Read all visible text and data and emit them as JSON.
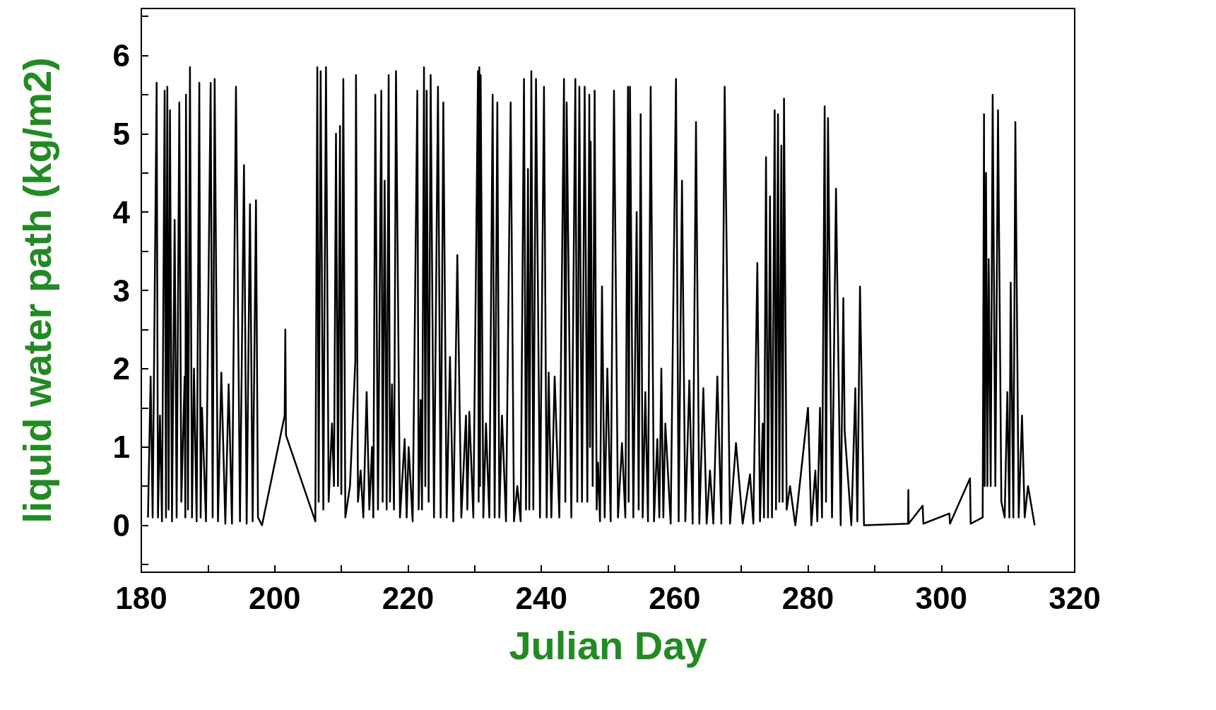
{
  "chart_data": {
    "type": "line",
    "xlabel": "Julian Day",
    "ylabel": "liquid water path (kg/m2)",
    "xlim": [
      180,
      320
    ],
    "ylim": [
      -0.6,
      6.6
    ],
    "xticks": [
      180,
      {
        "value": 190,
        "label": null
      },
      200,
      {
        "value": 210,
        "label": null
      },
      220,
      {
        "value": 230,
        "label": null
      },
      240,
      {
        "value": 250,
        "label": null
      },
      260,
      {
        "value": 270,
        "label": null
      },
      280,
      {
        "value": 290,
        "label": null
      },
      300,
      {
        "value": 310,
        "label": null
      },
      320
    ],
    "yticks": [
      {
        "value": -0.5,
        "label": null
      },
      0,
      {
        "value": 0.5,
        "label": null
      },
      1,
      {
        "value": 1.5,
        "label": null
      },
      2,
      {
        "value": 2.5,
        "label": null
      },
      3,
      {
        "value": 3.5,
        "label": null
      },
      4,
      {
        "value": 4.5,
        "label": null
      },
      5,
      {
        "value": 5.5,
        "label": null
      },
      6,
      {
        "value": 6.5,
        "label": null
      }
    ],
    "series": [
      {
        "color": "#000000",
        "x": [
          181.0,
          181.4,
          181.7,
          182.3,
          182.5,
          182.8,
          183.1,
          183.5,
          183.7,
          183.9,
          184.1,
          184.3,
          184.6,
          185.0,
          185.3,
          185.7,
          186.0,
          186.5,
          186.6,
          186.7,
          187.0,
          187.3,
          187.6,
          187.9,
          188.3,
          188.7,
          188.9,
          189.1,
          189.7,
          190.4,
          190.7,
          191.0,
          191.5,
          192.0,
          192.6,
          193.1,
          193.6,
          194.2,
          194.8,
          195.4,
          195.8,
          196.3,
          196.7,
          197.2,
          197.5,
          198.1,
          201.5,
          201.6,
          201.7,
          206.1,
          206.4,
          206.6,
          206.9,
          207.3,
          207.7,
          208.1,
          208.6,
          208.9,
          209.2,
          209.5,
          209.8,
          210.0,
          210.3,
          210.6,
          211.3,
          212.1,
          212.2,
          212.5,
          212.9,
          213.3,
          213.8,
          214.2,
          214.6,
          214.8,
          215.1,
          215.5,
          216.0,
          216.2,
          216.5,
          216.8,
          217.1,
          217.3,
          217.6,
          217.9,
          218.2,
          218.8,
          219.5,
          219.8,
          220.1,
          220.7,
          221.4,
          221.6,
          221.9,
          222.1,
          222.4,
          222.6,
          222.8,
          223.1,
          223.4,
          223.9,
          224.5,
          224.9,
          225.3,
          225.8,
          226.3,
          226.8,
          227.4,
          228.0,
          228.7,
          228.9,
          229.2,
          229.8,
          230.5,
          230.6,
          230.7,
          230.8,
          230.9,
          231.3,
          231.7,
          232.2,
          232.7,
          233.0,
          233.4,
          233.7,
          234.1,
          234.7,
          235.4,
          235.9,
          236.4,
          236.9,
          237.4,
          237.7,
          238.0,
          238.2,
          238.5,
          238.8,
          239.2,
          239.8,
          240.4,
          240.8,
          241.1,
          241.5,
          242.0,
          242.7,
          243.4,
          243.6,
          243.8,
          244.5,
          245.1,
          245.4,
          245.7,
          246.1,
          246.5,
          246.9,
          247.2,
          247.3,
          247.4,
          247.7,
          248.0,
          248.3,
          248.5,
          248.8,
          249.1,
          249.5,
          249.9,
          250.4,
          250.9,
          251.5,
          252.1,
          252.6,
          253.0,
          253.1,
          253.3,
          253.8,
          254.3,
          254.6,
          254.9,
          255.2,
          255.6,
          256.0,
          256.4,
          256.9,
          257.4,
          257.7,
          258.0,
          258.3,
          258.6,
          259.4,
          260.2,
          260.6,
          261.1,
          261.6,
          262.2,
          262.7,
          263.2,
          263.7,
          264.3,
          264.8,
          265.3,
          265.8,
          266.4,
          267.0,
          267.5,
          268.3,
          269.2,
          270.2,
          271.3,
          271.8,
          272.4,
          272.8,
          273.2,
          273.4,
          273.7,
          274.0,
          274.3,
          274.6,
          275.0,
          275.2,
          275.5,
          275.7,
          276.0,
          276.2,
          276.4,
          276.8,
          277.3,
          278.1,
          280.0,
          280.5,
          281.1,
          281.4,
          281.8,
          282.1,
          282.5,
          282.7,
          283.0,
          283.6,
          284.2,
          284.9,
          285.3,
          285.5,
          286.5,
          287.1,
          287.4,
          287.8,
          288.4,
          295.0,
          295.05,
          295.1,
          297.2,
          297.3,
          301.2,
          301.3,
          304.3,
          304.4,
          306.2,
          306.4,
          306.5,
          306.7,
          306.9,
          307.1,
          307.4,
          307.7,
          308.1,
          308.5,
          309.0,
          309.5,
          309.9,
          310.2,
          310.4,
          310.8,
          311.1,
          311.6,
          312.1,
          312.5,
          313.0,
          314.0
        ],
        "values": [
          0.1,
          1.9,
          0.1,
          5.65,
          0.1,
          1.4,
          0.05,
          5.55,
          0.1,
          5.6,
          0.2,
          5.3,
          0.05,
          3.9,
          0.1,
          5.4,
          0.3,
          1.9,
          0.1,
          5.5,
          0.2,
          5.85,
          0.1,
          2.0,
          0.05,
          5.65,
          0.1,
          1.5,
          0.05,
          5.65,
          0.1,
          5.7,
          0.05,
          1.95,
          0.02,
          1.8,
          0.02,
          5.6,
          0.05,
          4.6,
          0.02,
          4.1,
          0.05,
          4.15,
          0.1,
          0.0,
          1.4,
          2.5,
          1.15,
          0.05,
          5.85,
          0.3,
          5.8,
          0.2,
          5.85,
          0.3,
          1.3,
          0.5,
          5.0,
          0.5,
          5.1,
          0.4,
          5.7,
          0.1,
          0.5,
          2.1,
          5.75,
          0.3,
          0.7,
          0.1,
          1.7,
          0.2,
          1.0,
          0.1,
          5.5,
          0.2,
          5.55,
          0.3,
          4.4,
          0.2,
          5.75,
          0.3,
          1.8,
          0.2,
          5.8,
          0.1,
          1.1,
          0.1,
          1.0,
          0.05,
          5.55,
          0.2,
          1.6,
          0.2,
          5.85,
          0.5,
          5.55,
          0.3,
          5.75,
          0.1,
          5.6,
          0.1,
          5.4,
          0.1,
          2.15,
          0.05,
          3.45,
          0.1,
          1.4,
          0.2,
          1.45,
          0.1,
          5.8,
          0.3,
          5.85,
          0.5,
          5.75,
          0.1,
          1.3,
          0.1,
          5.5,
          0.1,
          5.4,
          0.1,
          1.4,
          0.05,
          5.4,
          0.05,
          0.5,
          0.05,
          5.7,
          0.2,
          4.55,
          0.2,
          5.8,
          0.2,
          5.7,
          0.1,
          5.6,
          0.1,
          1.95,
          0.1,
          1.9,
          0.1,
          5.7,
          0.3,
          5.4,
          0.1,
          5.7,
          0.3,
          5.6,
          0.3,
          5.6,
          0.3,
          5.5,
          1.0,
          4.9,
          0.5,
          5.55,
          0.2,
          0.8,
          0.05,
          3.05,
          0.1,
          2.0,
          0.05,
          5.55,
          0.1,
          1.05,
          0.1,
          5.6,
          0.3,
          5.6,
          0.1,
          4.0,
          0.2,
          5.25,
          0.1,
          1.7,
          0.05,
          5.6,
          0.05,
          1.1,
          0.1,
          2.0,
          0.1,
          1.3,
          0.02,
          5.7,
          0.05,
          4.4,
          0.05,
          1.85,
          0.02,
          5.15,
          0.02,
          1.75,
          0.02,
          0.7,
          0.02,
          1.9,
          0.02,
          5.6,
          0.02,
          1.05,
          0.02,
          0.65,
          0.02,
          3.35,
          0.05,
          1.3,
          0.1,
          4.7,
          0.1,
          4.2,
          0.1,
          5.3,
          0.2,
          5.25,
          0.3,
          4.85,
          0.3,
          5.45,
          0.2,
          0.5,
          0.0,
          1.5,
          0.0,
          0.7,
          0.05,
          1.5,
          0.1,
          5.35,
          0.3,
          5.2,
          0.1,
          4.3,
          0.0,
          2.9,
          1.2,
          0.0,
          1.75,
          0.05,
          3.05,
          0.0,
          0.02,
          0.45,
          0.02,
          0.25,
          0.02,
          0.15,
          0.02,
          0.6,
          0.02,
          0.1,
          5.25,
          0.5,
          4.5,
          0.5,
          3.4,
          0.5,
          5.5,
          0.5,
          5.3,
          0.3,
          0.1,
          1.7,
          0.1,
          3.1,
          0.1,
          5.15,
          0.1,
          1.4,
          0.1,
          0.5,
          0.0
        ]
      }
    ]
  }
}
